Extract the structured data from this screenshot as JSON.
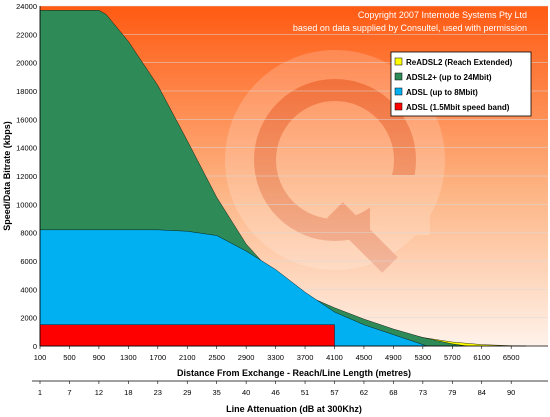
{
  "chart_data": {
    "type": "area",
    "copyright": [
      "Copyright 2007 Internode Systems Pty Ltd",
      "based on data supplied by Consultel, used with permission"
    ],
    "ylabel": "Speed/Data Bitrate (kbps)",
    "xlabel": "Distance From Exchange - Reach/Line Length (metres)",
    "xlabel2": "Line Attenuation (dB at 300Khz)",
    "ylim": [
      0,
      24000
    ],
    "yticks": [
      0,
      2000,
      4000,
      6000,
      8000,
      10000,
      12000,
      14000,
      16000,
      18000,
      20000,
      22000,
      24000
    ],
    "xlim": [
      100,
      7000
    ],
    "xticks": [
      100,
      500,
      900,
      1300,
      1700,
      2100,
      2500,
      2900,
      3300,
      3700,
      4100,
      4500,
      4900,
      5300,
      5700,
      6100,
      6500
    ],
    "xticks2": [
      "1",
      "7",
      "12",
      "18",
      "23",
      "29",
      "35",
      "40",
      "46",
      "51",
      "57",
      "62",
      "68",
      "73",
      "79",
      "84",
      "90"
    ],
    "grid": true,
    "legend_position": "top-right",
    "series": [
      {
        "name": "ReADSL2 (Reach Extended)",
        "color": "#ffff00",
        "points": [
          [
            3700,
            3300
          ],
          [
            4100,
            2400
          ],
          [
            4500,
            1700
          ],
          [
            4900,
            1100
          ],
          [
            5300,
            600
          ],
          [
            5700,
            280
          ],
          [
            6100,
            100
          ],
          [
            6500,
            20
          ],
          [
            6700,
            0
          ]
        ]
      },
      {
        "name": "ADSL2+ (up to 24Mbit)",
        "color": "#2e8b57",
        "points": [
          [
            100,
            23700
          ],
          [
            500,
            23700
          ],
          [
            900,
            23700
          ],
          [
            1000,
            23400
          ],
          [
            1300,
            21500
          ],
          [
            1700,
            18400
          ],
          [
            2100,
            14500
          ],
          [
            2500,
            10500
          ],
          [
            2900,
            7200
          ],
          [
            3300,
            4900
          ],
          [
            3700,
            3600
          ],
          [
            4100,
            2700
          ],
          [
            4500,
            1900
          ],
          [
            4900,
            1200
          ],
          [
            5300,
            600
          ],
          [
            5700,
            150
          ],
          [
            5900,
            0
          ]
        ]
      },
      {
        "name": "ADSL (up to 8Mbit)",
        "color": "#00b0f0",
        "points": [
          [
            100,
            8200
          ],
          [
            1700,
            8200
          ],
          [
            2100,
            8100
          ],
          [
            2500,
            7800
          ],
          [
            2900,
            6700
          ],
          [
            3300,
            5400
          ],
          [
            3700,
            3800
          ],
          [
            4100,
            2400
          ],
          [
            4500,
            1500
          ],
          [
            4900,
            800
          ],
          [
            5300,
            100
          ],
          [
            5350,
            0
          ]
        ]
      },
      {
        "name": "ADSL (1.5Mbit speed band)",
        "color": "#ff0000",
        "points": [
          [
            100,
            1500
          ],
          [
            4100,
            1500
          ]
        ]
      }
    ]
  }
}
